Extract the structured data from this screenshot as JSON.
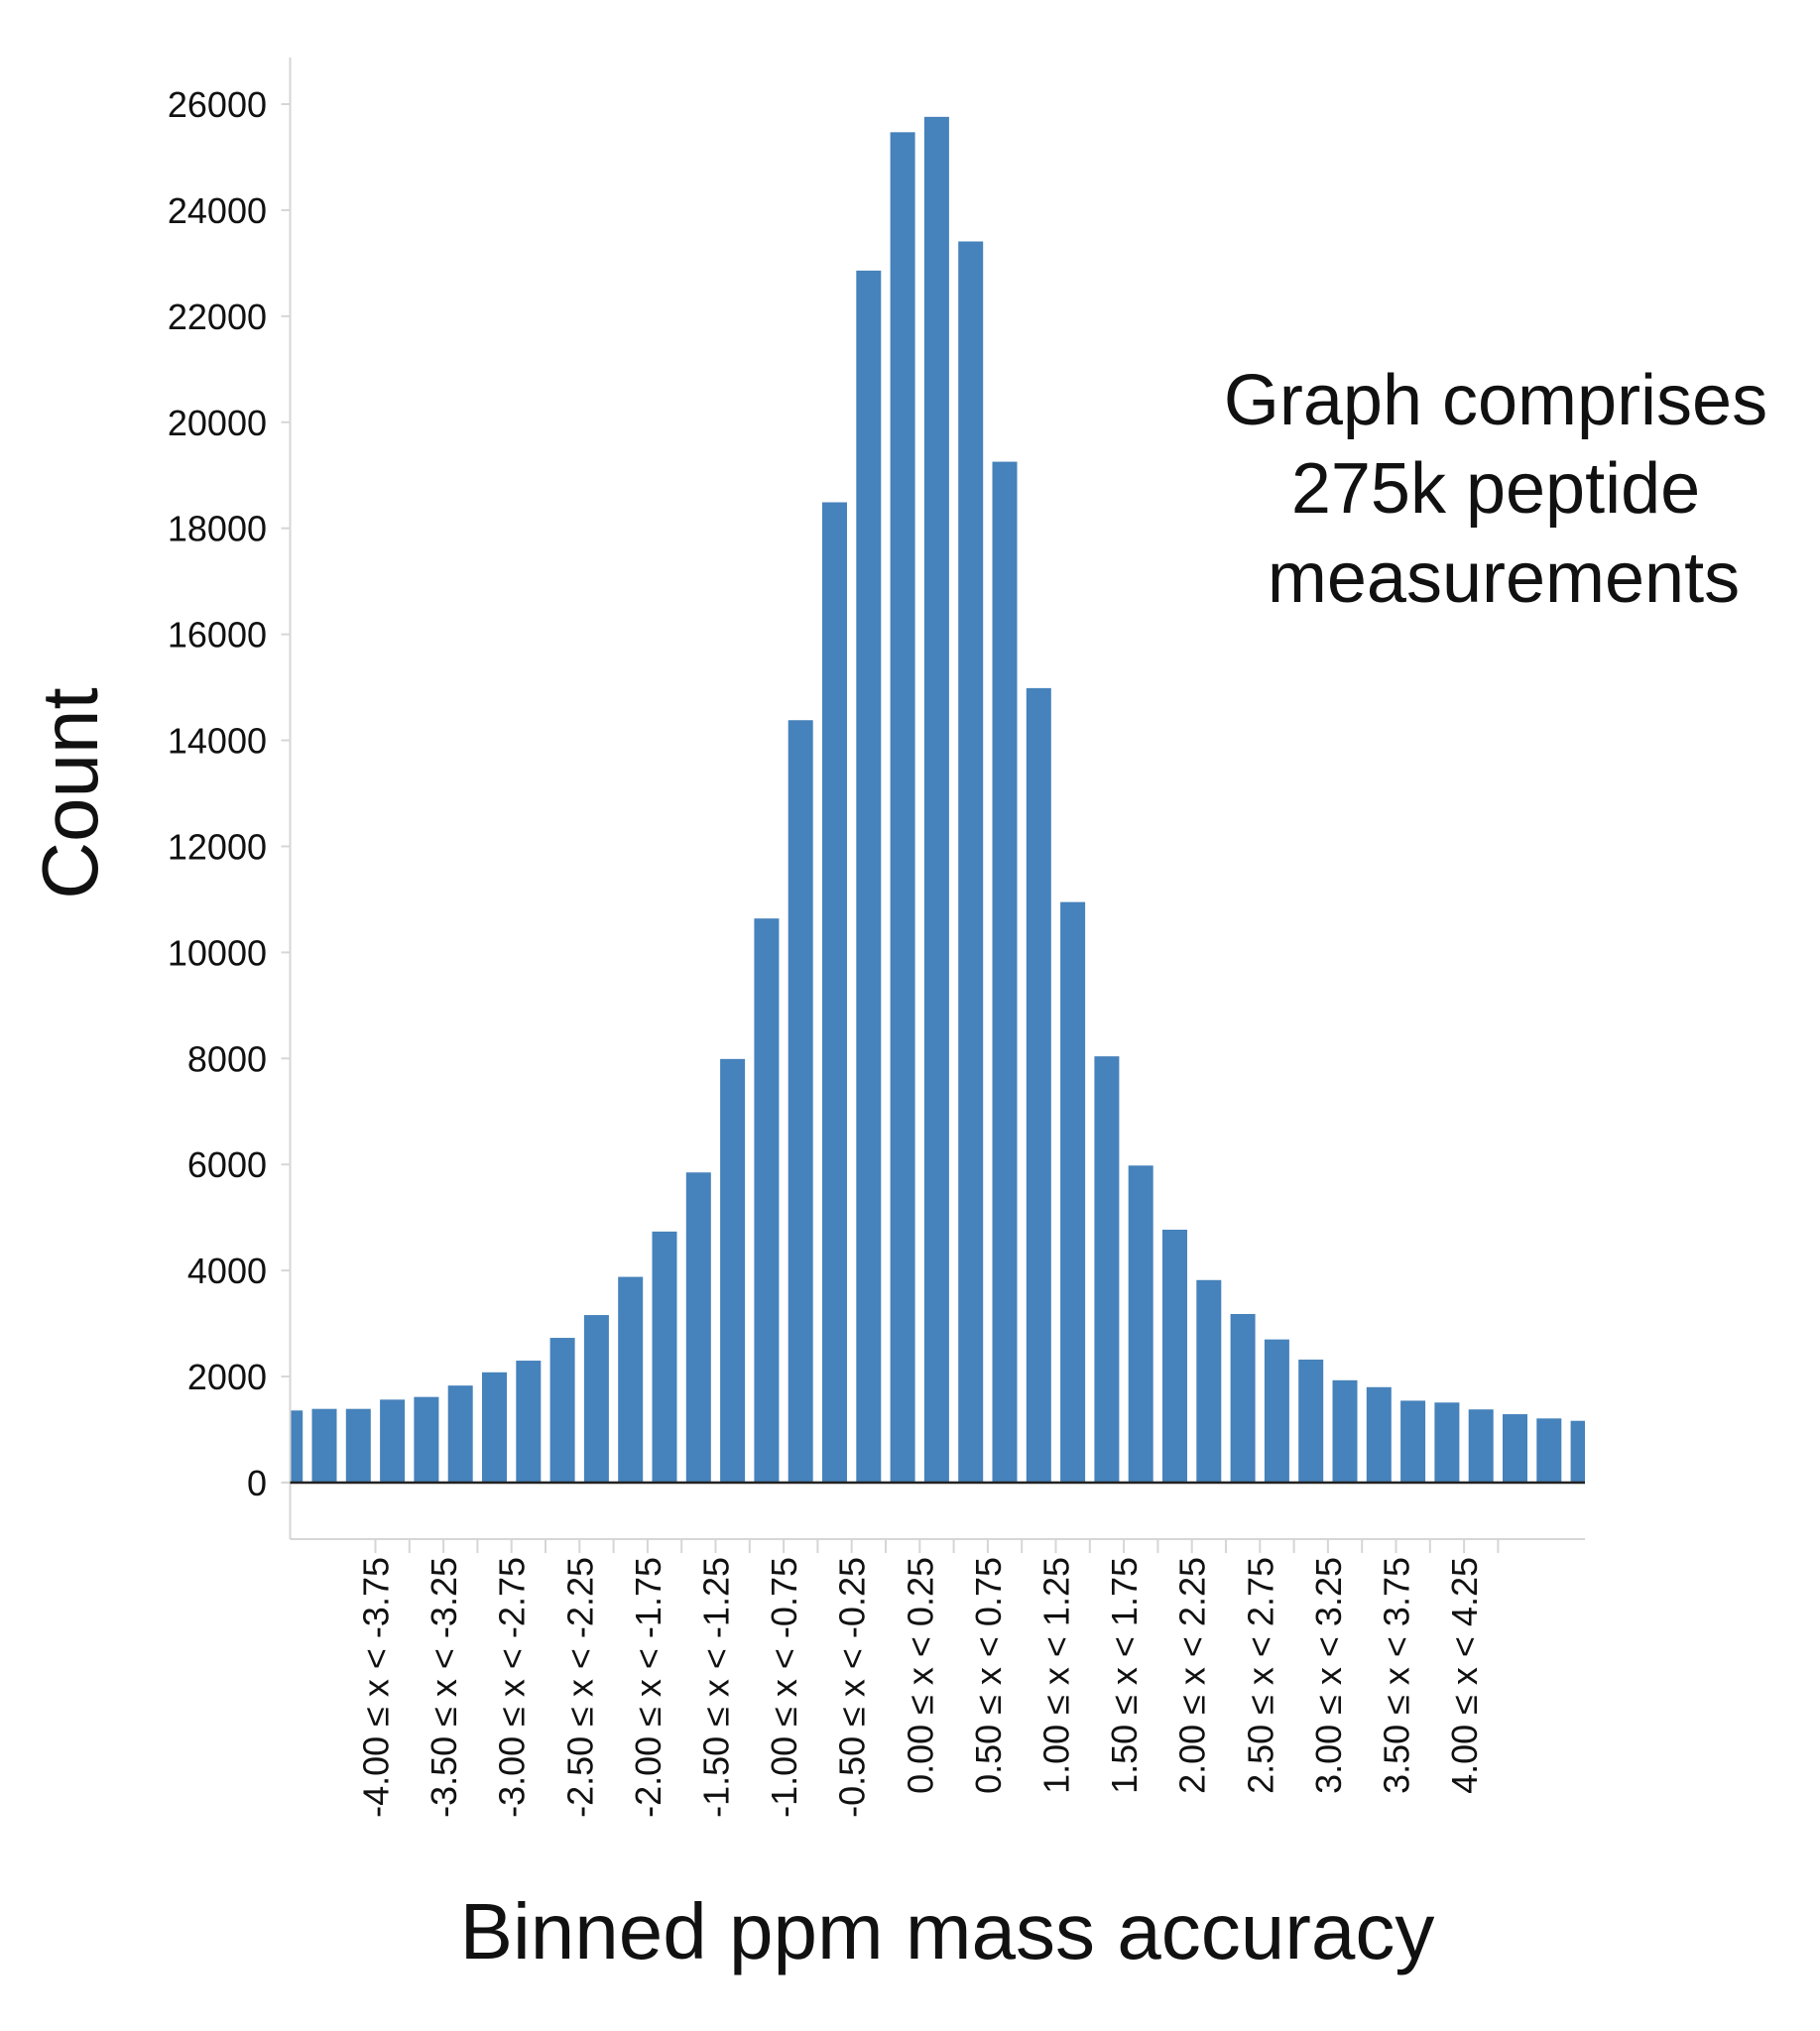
{
  "chart_data": {
    "type": "bar",
    "title": "",
    "xlabel": "Binned ppm mass accuracy",
    "ylabel": "Count",
    "ylim": [
      0,
      26000
    ],
    "y_ticks": [
      "0",
      "2000",
      "4000",
      "6000",
      "8000",
      "10000",
      "12000",
      "14000",
      "16000",
      "18000",
      "20000",
      "22000",
      "24000",
      "26000"
    ],
    "bin_width": 0.25,
    "bin_starts": [
      -4.75,
      -4.5,
      -4.25,
      -4.0,
      -3.75,
      -3.5,
      -3.25,
      -3.0,
      -2.75,
      -2.5,
      -2.25,
      -2.0,
      -1.75,
      -1.5,
      -1.25,
      -1.0,
      -0.75,
      -0.5,
      -0.25,
      0.0,
      0.25,
      0.5,
      0.75,
      1.0,
      1.25,
      1.5,
      1.75,
      2.0,
      2.25,
      2.5,
      2.75,
      3.0,
      3.25,
      3.5,
      3.75,
      4.0,
      4.25,
      4.5,
      4.75
    ],
    "values": [
      1360,
      1390,
      1390,
      1565,
      1615,
      1830,
      2080,
      2300,
      2730,
      3160,
      3880,
      4735,
      5850,
      7990,
      10640,
      14380,
      18490,
      22860,
      25470,
      25760,
      23410,
      19255,
      14985,
      10950,
      8040,
      5980,
      4770,
      3820,
      3180,
      2700,
      2320,
      1930,
      1800,
      1545,
      1510,
      1380,
      1290,
      1210,
      1165
    ],
    "x_tick_labels": [
      "-4.00 ≤ x < -3.75",
      "-3.50 ≤ x < -3.25",
      "-3.00 ≤ x < -2.75",
      "-2.50 ≤ x < -2.25",
      "-2.00 ≤ x < -1.75",
      "-1.50 ≤ x < -1.25",
      "-1.00 ≤ x < -0.75",
      "-0.50 ≤ x < -0.25",
      "0.00 ≤ x < 0.25",
      "0.50 ≤ x < 0.75",
      "1.00 ≤ x < 1.25",
      "1.50 ≤ x < 1.75",
      "2.00 ≤ x < 2.25",
      "2.50 ≤ x < 2.75",
      "3.00 ≤ x < 3.25",
      "3.50 ≤ x < 3.75",
      "4.00 ≤ x < 4.25"
    ],
    "annotation": [
      "Graph comprises",
      "275k peptide",
      "measurements"
    ],
    "grid": false,
    "legend": "none",
    "colors": {
      "bar": "#4682bb",
      "baseline": "#222222",
      "axis": "#d6d6d6",
      "text": "#111111"
    }
  }
}
